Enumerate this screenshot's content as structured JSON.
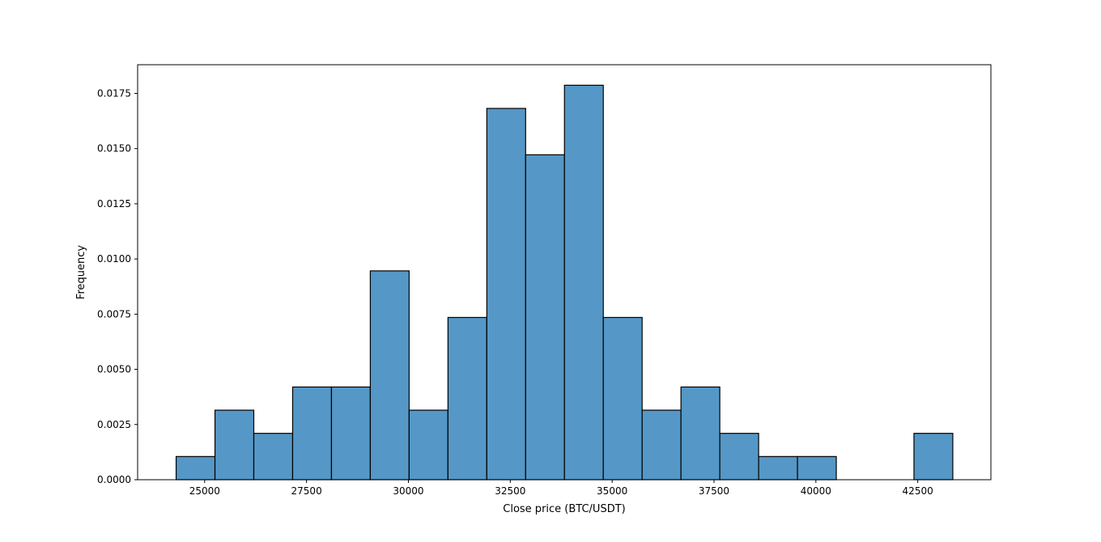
{
  "chart_data": {
    "type": "bar",
    "title": "",
    "xlabel": "Close price (BTC/USDT)",
    "ylabel": "Frequency",
    "xlim": [
      23355,
      44295
    ],
    "ylim": [
      0,
      0.0188
    ],
    "x_ticks": [
      25000,
      27500,
      30000,
      32500,
      35000,
      37500,
      40000,
      42500
    ],
    "x_tick_labels": [
      "25000",
      "27500",
      "30000",
      "32500",
      "35000",
      "37500",
      "40000",
      "42500"
    ],
    "y_ticks": [
      0,
      0.0025,
      0.005,
      0.0075,
      0.01,
      0.0125,
      0.015,
      0.0175
    ],
    "y_tick_labels": [
      "0.0000",
      "0.0025",
      "0.0050",
      "0.0075",
      "0.0100",
      "0.0125",
      "0.0150",
      "0.0175"
    ],
    "grid": false,
    "bar_color": "#5597c6",
    "edge_color": "#000000",
    "bin_edges": [
      24300,
      25253,
      26206,
      27159,
      28112,
      29065,
      30018,
      30971,
      31924,
      32877,
      33830,
      34783,
      35736,
      36689,
      37642,
      38595,
      39548,
      40501,
      41454,
      42407,
      43360
    ],
    "values": [
      0.00105,
      0.00315,
      0.0021,
      0.0042,
      0.0042,
      0.00946,
      0.00315,
      0.00735,
      0.01682,
      0.01472,
      0.01787,
      0.00735,
      0.00315,
      0.0042,
      0.0021,
      0.00105,
      0.00105,
      0,
      0,
      0.0021
    ]
  }
}
